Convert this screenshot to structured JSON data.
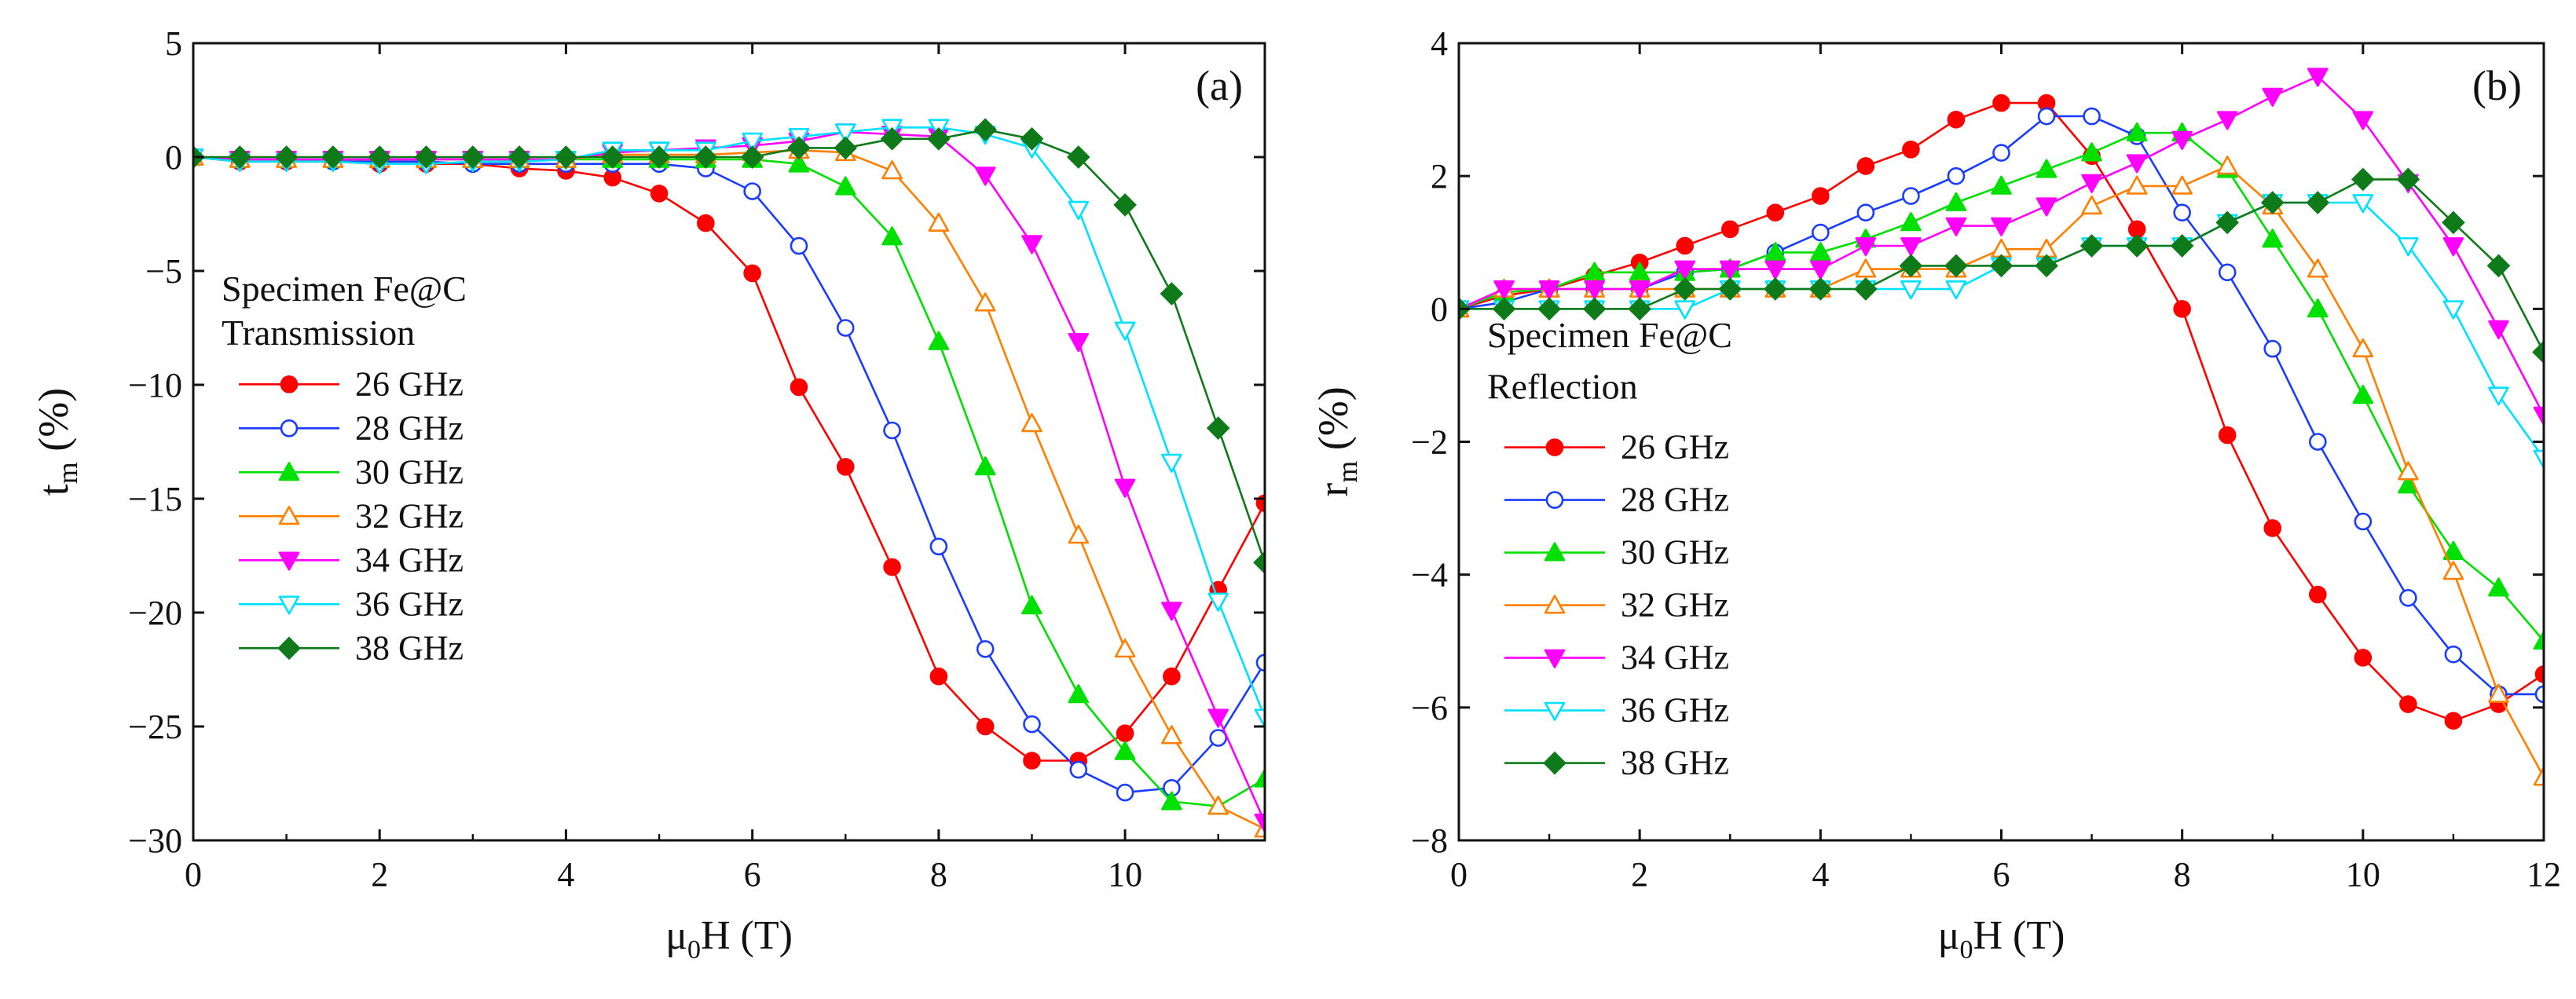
{
  "figure": {
    "panels": [
      {
        "id": "a",
        "label": "(a)",
        "xlabel": {
          "main": "μ",
          "sub": "0",
          "rest": "H (T)"
        },
        "ylabel": {
          "main": "t",
          "sub": "m",
          "rest": " (%)"
        },
        "legend_title": [
          "Specimen Fe@C",
          "Transmission"
        ]
      },
      {
        "id": "b",
        "label": "(b)",
        "xlabel": {
          "main": "μ",
          "sub": "0",
          "rest": "H (T)"
        },
        "ylabel": {
          "main": "r",
          "sub": "m",
          "rest": " (%)"
        },
        "legend_title": [
          "Specimen Fe@C",
          "Reflection"
        ]
      }
    ]
  },
  "chart_data": [
    {
      "type": "line",
      "title": "",
      "panel_label": "(a)",
      "xlabel": "μ0H (T)",
      "ylabel": "tm (%)",
      "xlim": [
        0,
        11.5
      ],
      "ylim": [
        -30,
        5
      ],
      "xticks": [
        0,
        2,
        4,
        6,
        8,
        10
      ],
      "yticks": [
        5,
        0,
        -5,
        -10,
        -15,
        -20,
        -25,
        -30
      ],
      "grid": false,
      "legend_position": "left",
      "x": [
        0,
        0.5,
        1,
        1.5,
        2,
        2.5,
        3,
        3.5,
        4,
        4.5,
        5,
        5.5,
        6,
        6.5,
        7,
        7.5,
        8,
        8.5,
        9,
        9.5,
        10,
        10.5,
        11,
        11.5
      ],
      "series": [
        {
          "name": "26 GHz",
          "color": "#ff0000",
          "marker": "circle-filled",
          "values": [
            0,
            -0.2,
            -0.2,
            -0.2,
            -0.3,
            -0.3,
            -0.3,
            -0.5,
            -0.6,
            -0.9,
            -1.6,
            -2.9,
            -5.1,
            -10.1,
            -13.6,
            -18,
            -22.8,
            -25,
            -26.5,
            -26.5,
            -25.3,
            -22.8,
            -19,
            -15.2
          ]
        },
        {
          "name": "28 GHz",
          "color": "#1a3cff",
          "marker": "circle-open",
          "values": [
            0,
            -0.1,
            -0.1,
            -0.2,
            -0.2,
            -0.2,
            -0.3,
            -0.3,
            -0.3,
            -0.3,
            -0.3,
            -0.5,
            -1.5,
            -3.9,
            -7.5,
            -12,
            -17.1,
            -21.6,
            -24.9,
            -26.9,
            -27.9,
            -27.7,
            -25.5,
            -22.2
          ]
        },
        {
          "name": "30 GHz",
          "color": "#00e000",
          "marker": "triangle-up-filled",
          "values": [
            0,
            -0.1,
            -0.1,
            -0.1,
            -0.1,
            -0.1,
            -0.1,
            -0.1,
            -0.1,
            -0.1,
            -0.1,
            -0.1,
            -0.1,
            -0.3,
            -1.3,
            -3.5,
            -8.1,
            -13.6,
            -19.7,
            -23.6,
            -26.1,
            -28.3,
            -28.5,
            -27.3
          ]
        },
        {
          "name": "32 GHz",
          "color": "#ff8000",
          "marker": "triangle-up-open",
          "values": [
            0,
            -0.1,
            -0.1,
            -0.1,
            -0.1,
            -0.1,
            -0.1,
            -0.1,
            -0.1,
            0.1,
            0.1,
            0.1,
            0.2,
            0.3,
            0.2,
            -0.6,
            -2.9,
            -6.4,
            -11.7,
            -16.6,
            -21.6,
            -25.4,
            -28.5,
            -29.5
          ]
        },
        {
          "name": "34 GHz",
          "color": "#ff00ff",
          "marker": "triangle-down-filled",
          "values": [
            0,
            -0.1,
            -0.1,
            -0.1,
            -0.1,
            -0.1,
            -0.1,
            -0.1,
            -0.1,
            0.2,
            0.3,
            0.4,
            0.5,
            0.7,
            1.1,
            1.0,
            0.9,
            -0.8,
            -3.8,
            -8.1,
            -14.5,
            -19.9,
            -24.6,
            -29.2
          ]
        },
        {
          "name": "36 GHz",
          "color": "#00e0ff",
          "marker": "triangle-down-open",
          "values": [
            0,
            -0.2,
            -0.2,
            -0.2,
            -0.3,
            -0.3,
            -0.2,
            -0.2,
            -0.1,
            0.3,
            0.3,
            0.3,
            0.7,
            0.9,
            1.1,
            1.3,
            1.3,
            1.0,
            0.4,
            -2.3,
            -7.6,
            -13.4,
            -19.5,
            -24.6
          ]
        },
        {
          "name": "38 GHz",
          "color": "#0e7a1a",
          "marker": "diamond-filled",
          "values": [
            0,
            0,
            0,
            0,
            0,
            0,
            0,
            0,
            0,
            0,
            0,
            0,
            0,
            0.4,
            0.4,
            0.8,
            0.8,
            1.2,
            0.8,
            0,
            -2.1,
            -6,
            -11.9,
            -17.8
          ]
        }
      ]
    },
    {
      "type": "line",
      "title": "",
      "panel_label": "(b)",
      "xlabel": "μ0H (T)",
      "ylabel": "rm (%)",
      "xlim": [
        0,
        12
      ],
      "ylim": [
        -8,
        4
      ],
      "xticks": [
        0,
        2,
        4,
        6,
        8,
        10,
        12
      ],
      "yticks": [
        4,
        2,
        0,
        -2,
        -4,
        -6,
        -8
      ],
      "grid": false,
      "legend_position": "bottom-left",
      "x": [
        0,
        0.5,
        1,
        1.5,
        2,
        2.5,
        3,
        3.5,
        4,
        4.5,
        5,
        5.5,
        6,
        6.5,
        7,
        7.5,
        8,
        8.5,
        9,
        9.5,
        10,
        10.5,
        11,
        11.5,
        12
      ],
      "series": [
        {
          "name": "26 GHz",
          "color": "#ff0000",
          "marker": "circle-filled",
          "values": [
            0,
            0.2,
            0.3,
            0.5,
            0.7,
            0.95,
            1.2,
            1.45,
            1.7,
            2.15,
            2.4,
            2.85,
            3.1,
            3.1,
            2.3,
            1.2,
            0,
            -1.9,
            -3.3,
            -4.3,
            -5.25,
            -5.95,
            -6.2,
            -5.95,
            -5.5
          ]
        },
        {
          "name": "28 GHz",
          "color": "#1a3cff",
          "marker": "circle-open",
          "values": [
            0,
            0.1,
            0.3,
            0.3,
            0.3,
            0.55,
            0.6,
            0.85,
            1.15,
            1.45,
            1.7,
            2.0,
            2.35,
            2.9,
            2.9,
            2.6,
            1.45,
            0.55,
            -0.6,
            -2.0,
            -3.2,
            -4.35,
            -5.2,
            -5.8,
            -5.8
          ]
        },
        {
          "name": "30 GHz",
          "color": "#00e000",
          "marker": "triangle-up-filled",
          "values": [
            0,
            0.25,
            0.3,
            0.55,
            0.55,
            0.55,
            0.6,
            0.85,
            0.85,
            1.05,
            1.3,
            1.6,
            1.85,
            2.1,
            2.35,
            2.65,
            2.65,
            2.1,
            1.05,
            0,
            -1.3,
            -2.65,
            -3.65,
            -4.2,
            -5.0
          ]
        },
        {
          "name": "32 GHz",
          "color": "#ff8000",
          "marker": "triangle-up-open",
          "values": [
            0,
            0.3,
            0.3,
            0.3,
            0.3,
            0.3,
            0.3,
            0.3,
            0.3,
            0.6,
            0.6,
            0.6,
            0.9,
            0.9,
            1.55,
            1.85,
            1.85,
            2.15,
            1.55,
            0.6,
            -0.6,
            -2.45,
            -3.95,
            -5.8,
            -7.05
          ]
        },
        {
          "name": "34 GHz",
          "color": "#ff00ff",
          "marker": "triangle-down-filled",
          "values": [
            0,
            0.3,
            0.3,
            0.3,
            0.3,
            0.6,
            0.6,
            0.6,
            0.6,
            0.95,
            0.95,
            1.25,
            1.25,
            1.55,
            1.9,
            2.2,
            2.55,
            2.85,
            3.2,
            3.5,
            2.85,
            1.9,
            0.95,
            -0.3,
            -1.6
          ]
        },
        {
          "name": "36 GHz",
          "color": "#00e0ff",
          "marker": "triangle-down-open",
          "values": [
            0,
            0,
            0,
            0,
            0,
            0,
            0.3,
            0.3,
            0.3,
            0.3,
            0.3,
            0.3,
            0.65,
            0.65,
            0.95,
            0.95,
            0.95,
            1.3,
            1.6,
            1.6,
            1.6,
            0.95,
            0,
            -1.3,
            -2.25
          ]
        },
        {
          "name": "38 GHz",
          "color": "#0e7a1a",
          "marker": "diamond-filled",
          "values": [
            0,
            0,
            0,
            0,
            0,
            0.3,
            0.3,
            0.3,
            0.3,
            0.3,
            0.65,
            0.65,
            0.65,
            0.65,
            0.95,
            0.95,
            0.95,
            1.3,
            1.6,
            1.6,
            1.95,
            1.95,
            1.3,
            0.65,
            -0.65
          ]
        }
      ]
    }
  ]
}
